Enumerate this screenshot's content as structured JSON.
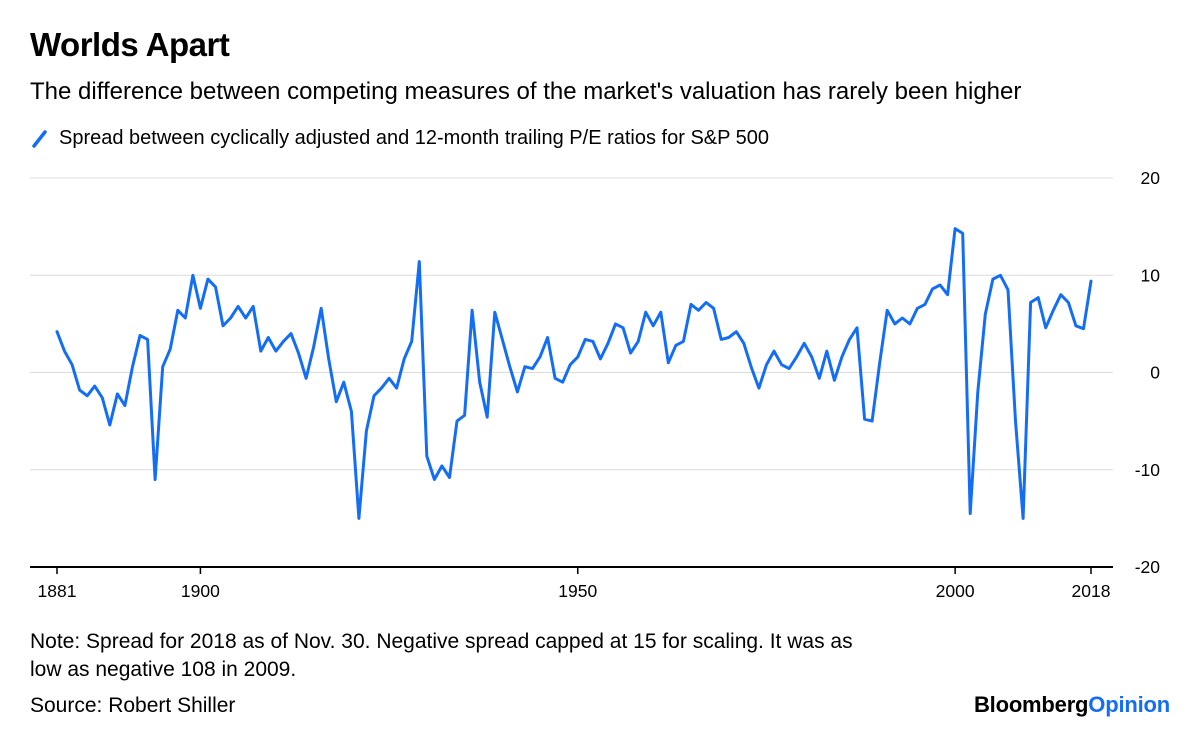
{
  "header": {
    "title": "Worlds Apart",
    "subtitle": "The difference between competing measures of the market's valuation has rarely been higher"
  },
  "legend": {
    "label": "Spread between cyclically adjusted and 12-month trailing P/E ratios for S&P 500"
  },
  "chart_data": {
    "type": "line",
    "title": "Worlds Apart",
    "subtitle": "The difference between competing measures of the market's valuation has rarely been higher",
    "xlabel": "",
    "ylabel": "",
    "grid": "horizontal",
    "legend_position": "top-left",
    "x_start": 1881,
    "x_step": 1,
    "x_end": 2018,
    "x_ticks": [
      1881,
      1900,
      1950,
      2000,
      2018
    ],
    "y_ticks": [
      20,
      10,
      0,
      -10,
      -20
    ],
    "ylim": [
      -20,
      20
    ],
    "series": [
      {
        "name": "Spread between cyclically adjusted and 12-month trailing P/E ratios for S&P 500",
        "color": "#146ef5",
        "values": [
          4.2,
          2.2,
          0.8,
          -1.8,
          -2.4,
          -1.4,
          -2.6,
          -5.4,
          -2.2,
          -3.4,
          0.6,
          3.8,
          3.4,
          -11,
          0.6,
          2.4,
          6.4,
          5.6,
          10,
          6.6,
          9.6,
          8.8,
          4.8,
          5.6,
          6.8,
          5.6,
          6.8,
          2.2,
          3.6,
          2.2,
          3.2,
          4,
          2,
          -0.6,
          2.6,
          6.6,
          1.4,
          -3,
          -1,
          -4,
          -15,
          -6,
          -2.4,
          -1.6,
          -0.6,
          -1.6,
          1.4,
          3.2,
          11.4,
          -8.6,
          -11,
          -9.6,
          -10.8,
          -5,
          -4.4,
          6.4,
          -1,
          -4.6,
          6.2,
          3.4,
          0.6,
          -2,
          0.6,
          0.4,
          1.6,
          3.6,
          -0.6,
          -1,
          0.8,
          1.6,
          3.4,
          3.2,
          1.4,
          3,
          5,
          4.6,
          2,
          3.2,
          6.2,
          4.8,
          6.2,
          1,
          2.8,
          3.2,
          7,
          6.4,
          7.2,
          6.6,
          3.4,
          3.6,
          4.2,
          3,
          0.5,
          -1.6,
          0.8,
          2.2,
          0.8,
          0.4,
          1.6,
          3,
          1.6,
          -0.6,
          2.2,
          -0.8,
          1.6,
          3.4,
          4.6,
          -4.8,
          -5,
          1,
          6.4,
          5,
          5.6,
          5,
          6.6,
          7,
          8.6,
          9,
          8,
          14.8,
          14.3,
          -14.5,
          -2,
          6,
          9.6,
          10,
          8.5,
          -5,
          -15,
          7.2,
          7.7,
          4.6,
          6.4,
          8,
          7.2,
          4.8,
          4.5,
          9.4
        ]
      }
    ]
  },
  "footer": {
    "note_lines": [
      "Note: Spread for 2018 as of Nov. 30. Negative spread capped at 15 for scaling. It was as",
      "low as negative 108 in 2009."
    ],
    "source": "Source: Robert Shiller",
    "logo_bloomberg": "Bloomberg",
    "logo_opinion": "Opinion"
  },
  "colors": {
    "line": "#146ef5",
    "logo_opinion": "#146ef5",
    "grid": "#dcdcdc",
    "axis": "#000000",
    "text": "#000000"
  }
}
